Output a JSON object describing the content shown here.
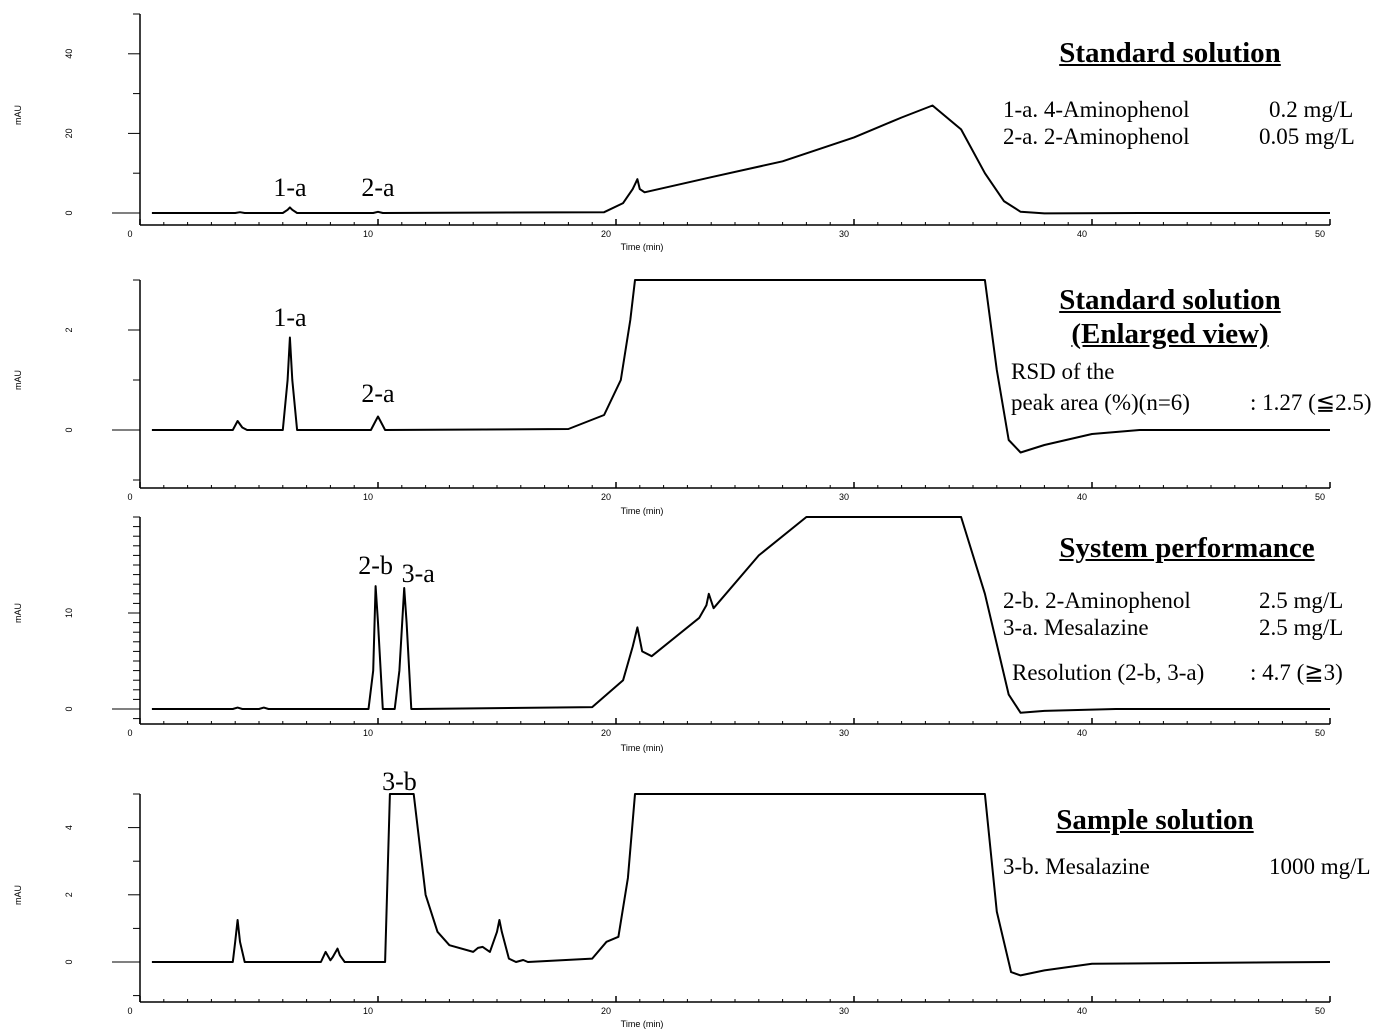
{
  "chart_data": [
    {
      "type": "line",
      "title": "Standard solution",
      "xlabel": "Time (min)",
      "ylabel": "mAU",
      "xlim": [
        0,
        50
      ],
      "ylim": [
        -3,
        50
      ],
      "x_ticks": [
        "0",
        "10",
        "20",
        "30",
        "40",
        "50"
      ],
      "y_ticks": [
        "0",
        "20",
        "40"
      ],
      "y_tick_values": [
        0,
        20,
        40
      ],
      "grid": false,
      "peak_labels": [
        {
          "label": "1-a",
          "x": 6.3,
          "y": 1.3
        },
        {
          "label": "2-a",
          "x": 10.0,
          "y": 0.3
        }
      ],
      "series": [
        {
          "x": [
            0.5,
            4.0,
            4.2,
            4.4,
            6.0,
            6.2,
            6.3,
            6.4,
            6.6,
            9.8,
            10.0,
            10.2,
            19.5,
            20.3,
            20.7,
            20.9,
            21.0,
            21.2,
            24,
            27,
            30,
            32,
            33.3,
            34.5,
            35.5,
            36.3,
            37.0,
            38,
            42,
            50
          ],
          "y": [
            0,
            0,
            0.2,
            0,
            0,
            0.8,
            1.4,
            0.8,
            0,
            0,
            0.3,
            0,
            0.2,
            2.5,
            6,
            8.5,
            6,
            5.2,
            9,
            13,
            19,
            24,
            27,
            21,
            10,
            3,
            0.3,
            -0.1,
            0,
            0
          ]
        }
      ]
    },
    {
      "type": "line",
      "title": "Standard solution (Enlarged view)",
      "xlabel": "Time (min)",
      "ylabel": "mAU",
      "xlim": [
        0,
        50
      ],
      "ylim": [
        -1.2,
        3.0
      ],
      "x_ticks": [
        "0",
        "10",
        "20",
        "30",
        "40",
        "50"
      ],
      "y_ticks": [
        "0",
        "2"
      ],
      "y_tick_values": [
        0,
        2
      ],
      "grid": false,
      "peak_labels": [
        {
          "label": "1-a",
          "x": 6.3,
          "y": 1.8
        },
        {
          "label": "2-a",
          "x": 10.0,
          "y": 0.28
        }
      ],
      "series": [
        {
          "x": [
            0.5,
            3.9,
            4.1,
            4.3,
            4.5,
            6.0,
            6.2,
            6.3,
            6.4,
            6.6,
            9.7,
            9.9,
            10.0,
            10.1,
            10.3,
            18,
            19.5,
            20.2,
            20.6,
            20.8,
            21.0,
            35.5,
            36.0,
            36.5,
            37.0,
            38,
            40,
            42,
            50
          ],
          "y": [
            0,
            0,
            0.18,
            0.05,
            0,
            0,
            1.0,
            1.85,
            1.0,
            0,
            0,
            0.18,
            0.27,
            0.18,
            0,
            0.02,
            0.3,
            1.0,
            2.2,
            3.0,
            3.0,
            3.0,
            1.2,
            -0.2,
            -0.45,
            -0.3,
            -0.08,
            0,
            0
          ]
        }
      ]
    },
    {
      "type": "line",
      "title": "System performance",
      "xlabel": "Time (min)",
      "ylabel": "mAU",
      "xlim": [
        0,
        50
      ],
      "ylim": [
        -1.5,
        20.0
      ],
      "x_ticks": [
        "0",
        "10",
        "20",
        "30",
        "40",
        "50"
      ],
      "y_ticks": [
        "0",
        "10"
      ],
      "y_tick_values": [
        0,
        10
      ],
      "grid": false,
      "peak_labels": [
        {
          "label": "2-b",
          "x": 9.9,
          "y": 12.8
        },
        {
          "label": "3-a",
          "x": 11.1,
          "y": 12.6
        }
      ],
      "series": [
        {
          "x": [
            0.5,
            3.9,
            4.1,
            4.3,
            5.0,
            5.2,
            5.4,
            9.6,
            9.8,
            9.9,
            10.0,
            10.2,
            10.7,
            10.9,
            11.1,
            11.2,
            11.4,
            11.6,
            19,
            20.3,
            20.7,
            20.9,
            21.1,
            21.5,
            23.5,
            23.8,
            23.9,
            24.1,
            26,
            28,
            28.5,
            34.5,
            35.5,
            36.5,
            37,
            38,
            41,
            50
          ],
          "y": [
            0,
            0,
            0.15,
            0,
            0,
            0.15,
            0,
            0,
            4,
            12.8,
            9,
            0,
            0,
            4,
            12.6,
            9,
            0,
            0,
            0.2,
            3,
            6.5,
            8.5,
            6,
            5.5,
            9.5,
            10.8,
            12.0,
            10.5,
            16,
            20,
            20,
            20,
            12,
            1.5,
            -0.4,
            -0.2,
            0,
            0
          ]
        }
      ]
    },
    {
      "type": "line",
      "title": "Sample solution",
      "xlabel": "Time (min)",
      "ylabel": "mAU",
      "xlim": [
        0,
        50
      ],
      "ylim": [
        -1.1,
        5.0
      ],
      "x_ticks": [
        "0",
        "10",
        "20",
        "30",
        "40",
        "50"
      ],
      "y_ticks": [
        "0",
        "2",
        "4"
      ],
      "y_tick_values": [
        0,
        2,
        4
      ],
      "grid": false,
      "peak_labels": [
        {
          "label": "3-b",
          "x": 10.9,
          "y": 5.0
        }
      ],
      "series": [
        {
          "x": [
            0.5,
            3.9,
            4.0,
            4.1,
            4.2,
            4.4,
            7.6,
            7.8,
            8.0,
            8.1,
            8.3,
            8.4,
            8.6,
            10.3,
            10.4,
            10.5,
            11.5,
            12,
            12.5,
            13,
            14,
            14.2,
            14.4,
            14.7,
            15.0,
            15.1,
            15.2,
            15.5,
            15.8,
            16.1,
            16.3,
            19,
            19.6,
            20.1,
            20.5,
            20.8,
            21.0,
            35.5,
            36.0,
            36.6,
            37.0,
            38,
            40,
            50
          ],
          "y": [
            0,
            0,
            0.6,
            1.25,
            0.6,
            0,
            0,
            0.3,
            0.05,
            0.15,
            0.4,
            0.2,
            0,
            0,
            2.5,
            5.0,
            5.0,
            2.0,
            0.9,
            0.5,
            0.3,
            0.42,
            0.45,
            0.3,
            0.9,
            1.25,
            0.9,
            0.1,
            0,
            0.06,
            0,
            0.1,
            0.6,
            0.75,
            2.5,
            5.0,
            5.0,
            5.0,
            1.5,
            -0.3,
            -0.4,
            -0.25,
            -0.05,
            0
          ]
        }
      ]
    }
  ],
  "panel_info": [
    {
      "title_lines": [
        "Standard solution"
      ],
      "rows": [
        {
          "name": "1-a. 4-Aminophenol",
          "value": "0.2 mg/L"
        },
        {
          "name": "2-a. 2-Aminophenol",
          "value": "0.05 mg/L"
        }
      ]
    },
    {
      "title_lines": [
        "Standard solution",
        "(Enlarged view)"
      ],
      "note_lines": [
        "RSD of the",
        "peak area (%)(n=6)"
      ],
      "note_value": ": 1.27 (≦2.5)"
    },
    {
      "title_lines": [
        "System performance"
      ],
      "rows": [
        {
          "name": "2-b. 2-Aminophenol",
          "value": "2.5 mg/L"
        },
        {
          "name": "3-a. Mesalazine",
          "value": "2.5 mg/L"
        }
      ],
      "note_lines": [
        "Resolution (2-b, 3-a)"
      ],
      "note_value": ": 4.7 (≧3)"
    },
    {
      "title_lines": [
        "Sample solution"
      ],
      "rows": [
        {
          "name": "3-b. Mesalazine",
          "value": "1000 mg/L"
        }
      ]
    }
  ]
}
